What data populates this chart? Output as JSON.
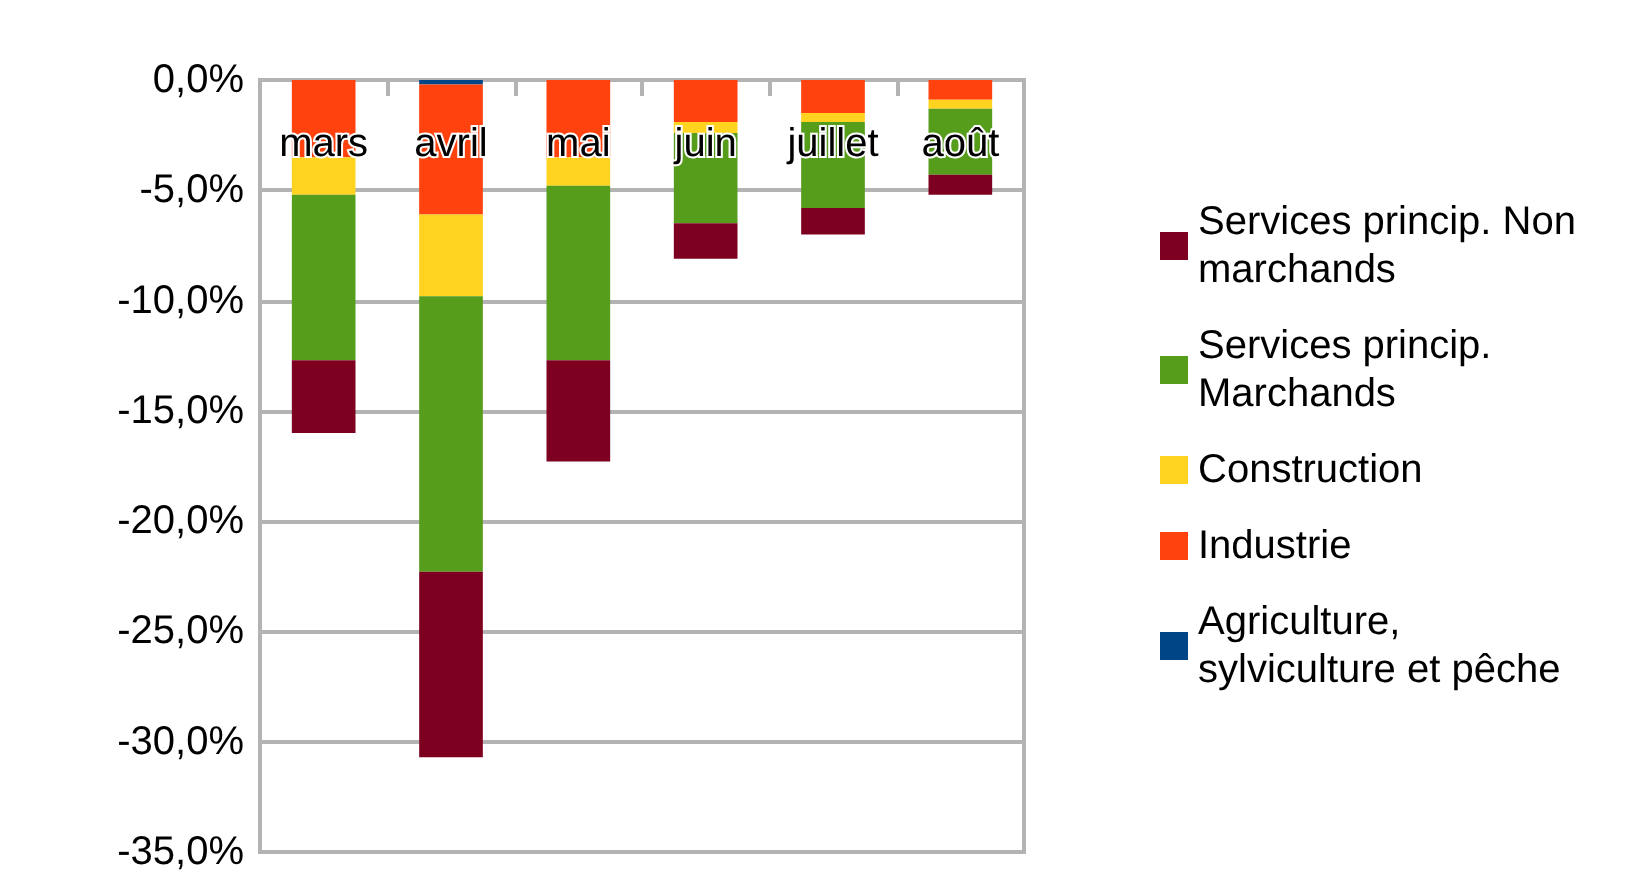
{
  "chart_data": {
    "type": "bar",
    "stacked": true,
    "categories": [
      "mars",
      "avril",
      "mai",
      "juin",
      "juillet",
      "août"
    ],
    "series": [
      {
        "name": "Agriculture, sylviculture et pêche",
        "color": "#004586",
        "values": [
          0,
          -0.2,
          0,
          0,
          0,
          0
        ]
      },
      {
        "name": "Industrie",
        "color": "#ff420e",
        "values": [
          -3.5,
          -5.9,
          -3.5,
          -1.9,
          -1.5,
          -0.9
        ]
      },
      {
        "name": "Construction",
        "color": "#ffd320",
        "values": [
          -1.7,
          -3.7,
          -1.3,
          -0.5,
          -0.4,
          -0.4
        ]
      },
      {
        "name": "Services princip. Marchands",
        "color": "#579d1c",
        "values": [
          -7.5,
          -12.5,
          -7.9,
          -4.1,
          -3.9,
          -3.0
        ]
      },
      {
        "name": "Services princip. Non marchands",
        "color": "#7e0021",
        "values": [
          -3.3,
          -8.4,
          -4.6,
          -1.6,
          -1.2,
          -0.9
        ]
      }
    ],
    "ylim": [
      -35,
      0
    ],
    "yticks": [
      {
        "value": -35,
        "label": "-35,0%"
      },
      {
        "value": -30,
        "label": "-30,0%"
      },
      {
        "value": -25,
        "label": "-25,0%"
      },
      {
        "value": -20,
        "label": "-20,0%"
      },
      {
        "value": -15,
        "label": "-15,0%"
      },
      {
        "value": -10,
        "label": "-10,0%"
      },
      {
        "value": -5,
        "label": "-5,0%"
      },
      {
        "value": 0,
        "label": "0,0%"
      }
    ],
    "grid": "y",
    "legend": "right"
  }
}
